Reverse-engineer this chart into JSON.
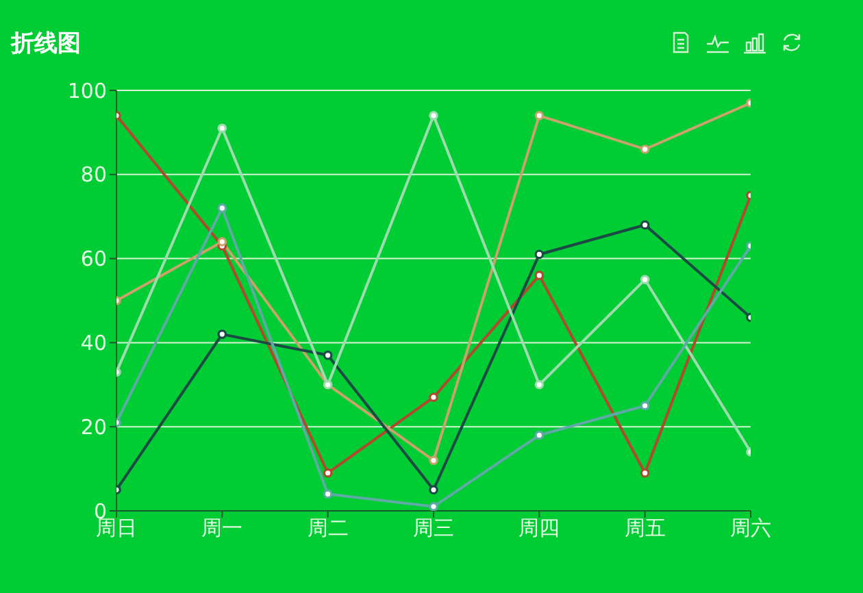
{
  "chart_data": {
    "type": "line",
    "title": "折线图",
    "categories": [
      "周日",
      "周一",
      "周二",
      "周三",
      "周四",
      "周五",
      "周六"
    ],
    "series": [
      {
        "color": "#b0492e",
        "values": [
          94,
          63,
          9,
          27,
          56,
          9,
          75
        ]
      },
      {
        "color": "#c8a36b",
        "values": [
          50,
          64,
          30,
          12,
          94,
          86,
          97
        ]
      },
      {
        "color": "#1b4a45",
        "values": [
          5,
          42,
          37,
          5,
          61,
          68,
          46
        ]
      },
      {
        "color": "#9edcb0",
        "values": [
          33,
          91,
          30,
          94,
          30,
          55,
          14
        ]
      },
      {
        "color": "#60aaa6",
        "values": [
          21,
          72,
          4,
          1,
          18,
          25,
          63
        ]
      }
    ],
    "ylim": [
      0,
      100
    ],
    "yticks": [
      0,
      20,
      40,
      60,
      80,
      100
    ],
    "grid": "y",
    "marker": "circle",
    "line_style": "solid"
  }
}
